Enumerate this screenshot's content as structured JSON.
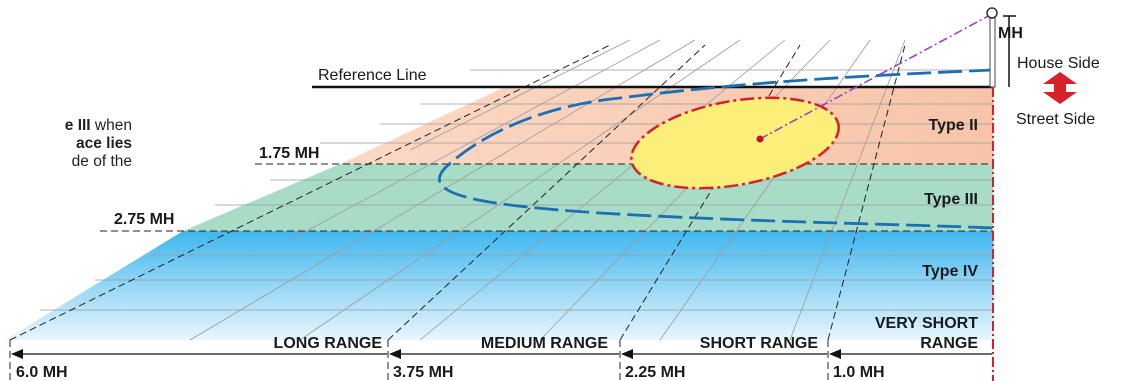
{
  "note": {
    "line1_bold": "e III",
    "line1_rest": " when",
    "line2_bold": "ace lies",
    "line3": "de of the"
  },
  "labels": {
    "reference_line": "Reference Line",
    "mh": "MH",
    "house_side": "House Side",
    "street_side": "Street Side",
    "mh_175": "1.75 MH",
    "mh_275": "2.75 MH",
    "type_ii": "Type II",
    "type_iii": "Type III",
    "type_iv": "Type IV"
  },
  "ranges": [
    {
      "label": "LONG RANGE",
      "boundary": "6.0 MH"
    },
    {
      "label": "MEDIUM RANGE",
      "boundary": "3.75 MH"
    },
    {
      "label": "SHORT RANGE",
      "boundary": "2.25 MH"
    },
    {
      "label_line1": "VERY SHORT",
      "label_line2": "RANGE",
      "boundary": "1.0 MH"
    }
  ],
  "colors": {
    "type_ii_fill": "#f7c4a8",
    "type_iii_fill": "#a9dcc6",
    "type_iv_fill": "#6cc8f0",
    "isofootcandle_inner": "#fbef7a",
    "inner_outline": "#d6202a",
    "outer_outline": "#1b6fb5",
    "pole_line": "#9a3cc0",
    "arrow": "#d6202a"
  }
}
